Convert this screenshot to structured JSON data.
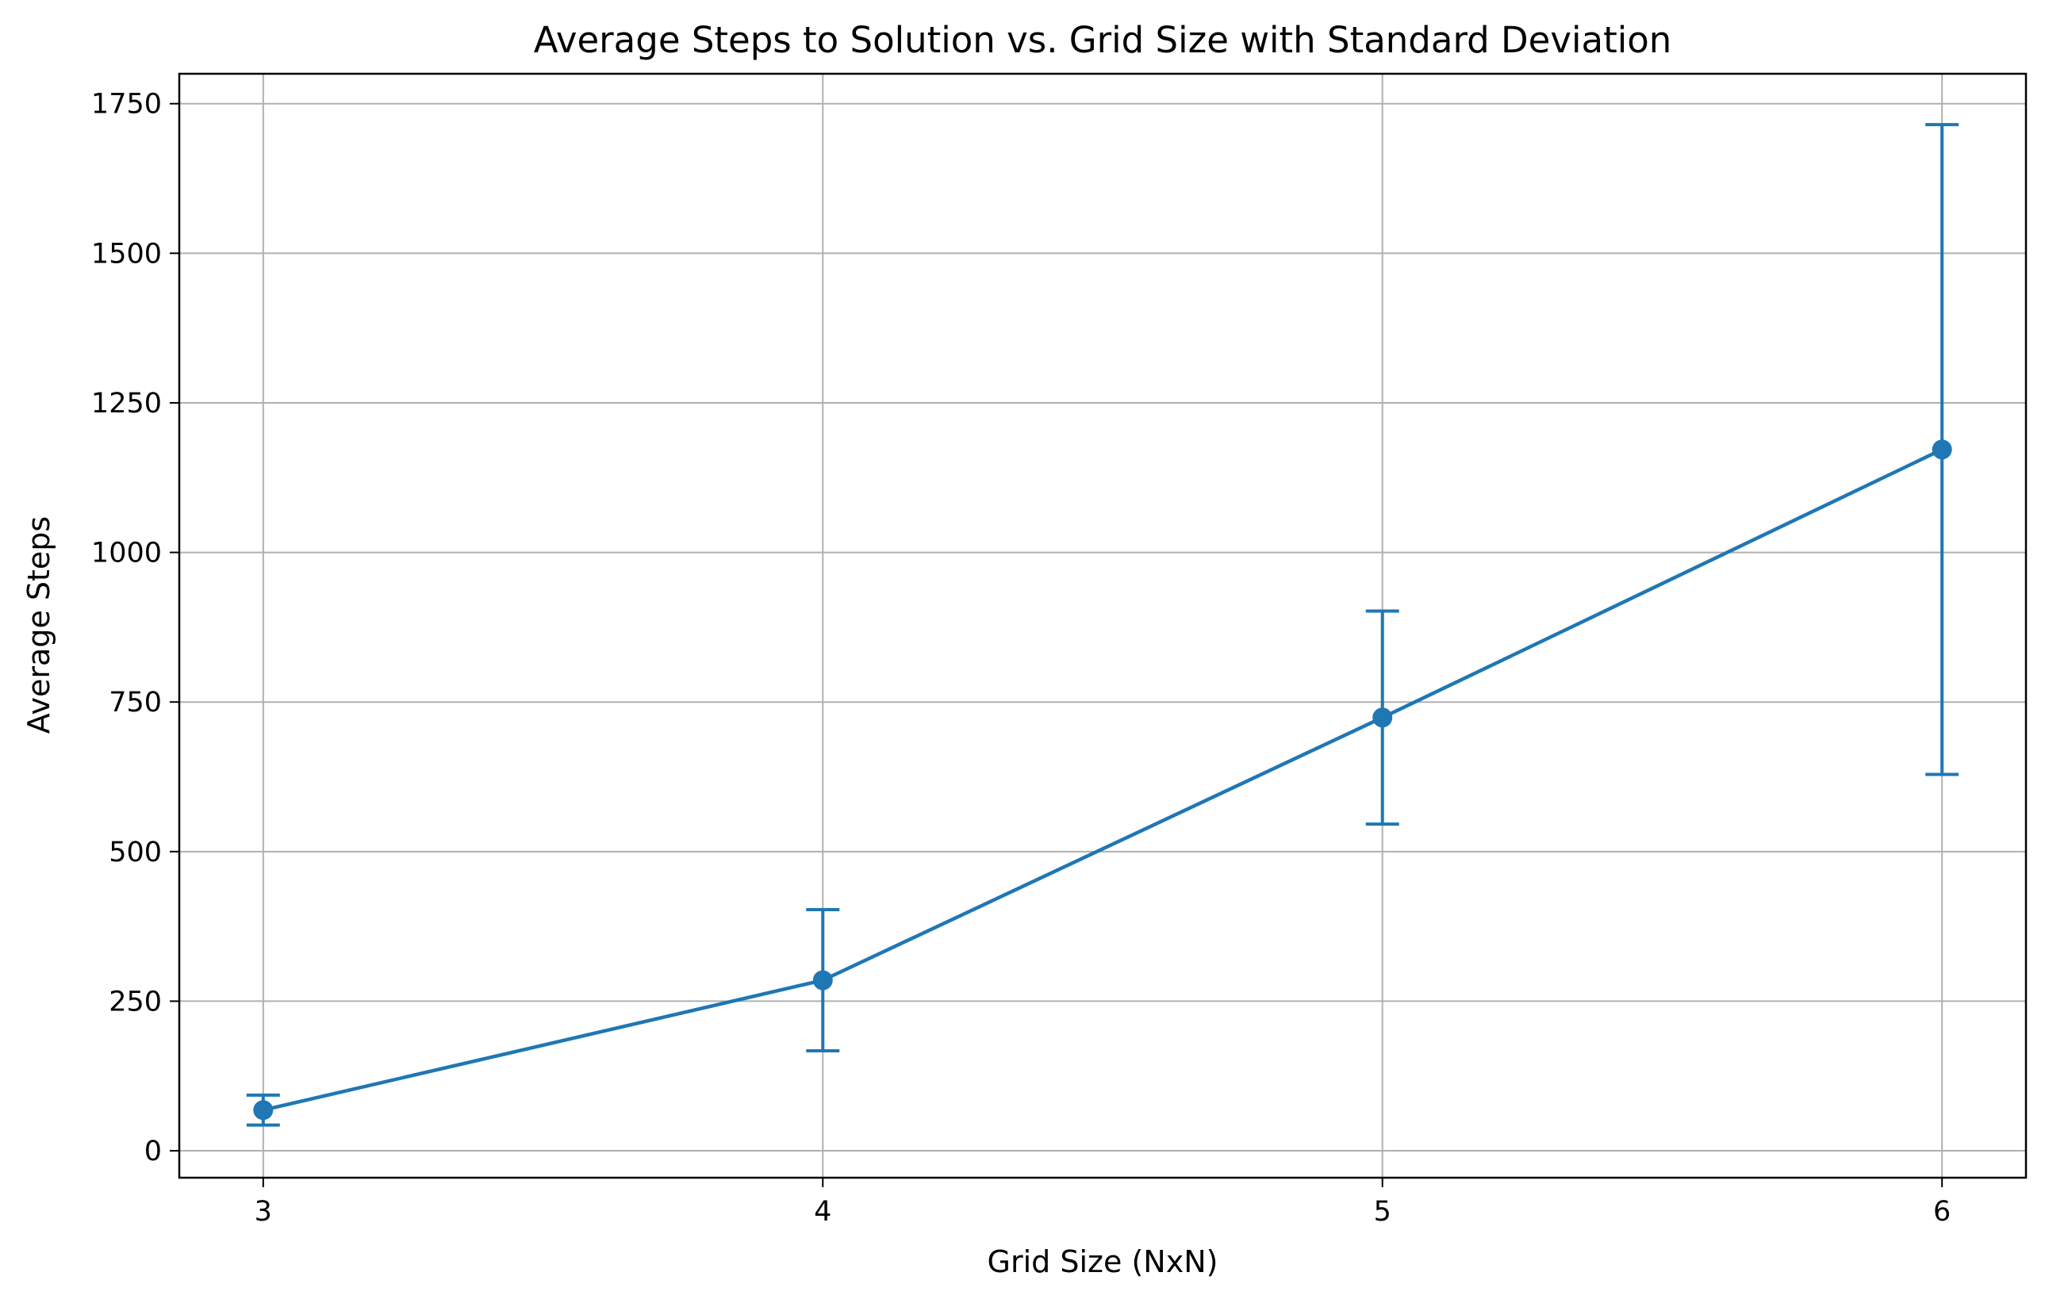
{
  "chart_data": {
    "type": "line",
    "title": "Average Steps to Solution vs. Grid Size with Standard Deviation",
    "xlabel": "Grid Size (NxN)",
    "ylabel": "Average Steps",
    "x": [
      3,
      4,
      5,
      6
    ],
    "x_ticks": [
      "3",
      "4",
      "5",
      "6"
    ],
    "y_ticks": [
      "0",
      "250",
      "500",
      "750",
      "1000",
      "1250",
      "1500",
      "1750"
    ],
    "xlim": [
      2.85,
      6.15
    ],
    "ylim": [
      -45,
      1800
    ],
    "grid": true,
    "series": [
      {
        "values": [
          68,
          285,
          724,
          1172
        ],
        "error": [
          25,
          118,
          178,
          543
        ],
        "color": "#1f77b4",
        "marker": "circle"
      }
    ]
  }
}
